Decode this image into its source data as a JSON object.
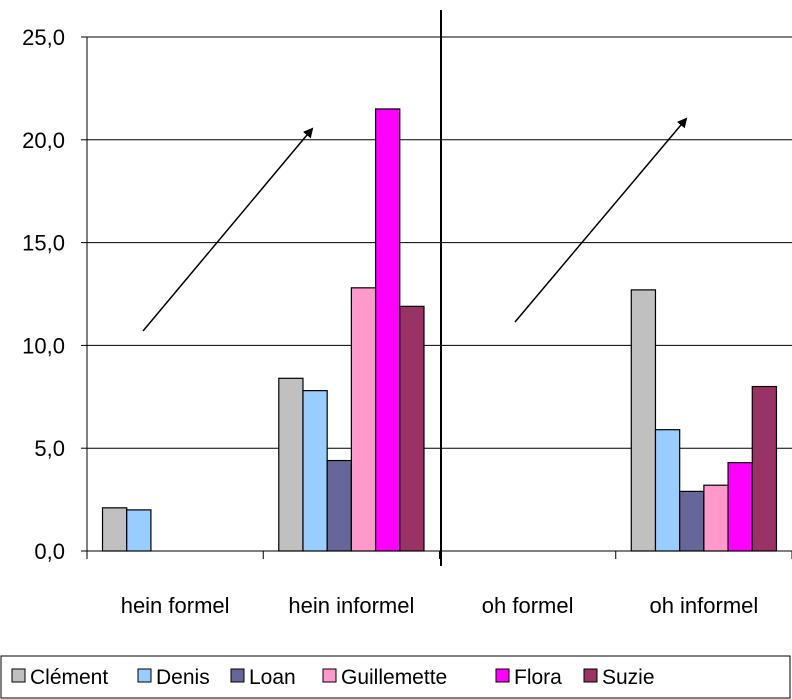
{
  "chart_data": {
    "type": "bar",
    "categories": [
      "hein formel",
      "hein informel",
      "oh formel",
      "oh informel"
    ],
    "series": [
      {
        "name": "Clément",
        "color": "#c0c0c0",
        "values": [
          2.1,
          8.4,
          0,
          12.7
        ]
      },
      {
        "name": "Denis",
        "color": "#99ccff",
        "values": [
          2.0,
          7.8,
          0,
          5.9
        ]
      },
      {
        "name": "Loan",
        "color": "#666699",
        "values": [
          0,
          4.4,
          0,
          2.9
        ]
      },
      {
        "name": "Guillemette",
        "color": "#ff99cc",
        "values": [
          0,
          12.8,
          0,
          3.2
        ]
      },
      {
        "name": "Flora",
        "color": "#ff00ff",
        "values": [
          0,
          21.5,
          0,
          4.3
        ]
      },
      {
        "name": "Suzie",
        "color": "#993366",
        "values": [
          0,
          11.9,
          0,
          8.0
        ]
      }
    ],
    "ylim": [
      0,
      25
    ],
    "yticks": [
      "0,0",
      "5,0",
      "10,0",
      "15,0",
      "20,0",
      "25,0"
    ],
    "ytick_values": [
      0,
      5,
      10,
      15,
      20,
      25
    ],
    "grid": true,
    "legend_position": "bottom",
    "annotations": [
      "upward arrow over hein group",
      "upward arrow over oh group",
      "vertical divider between hein and oh groups"
    ]
  }
}
